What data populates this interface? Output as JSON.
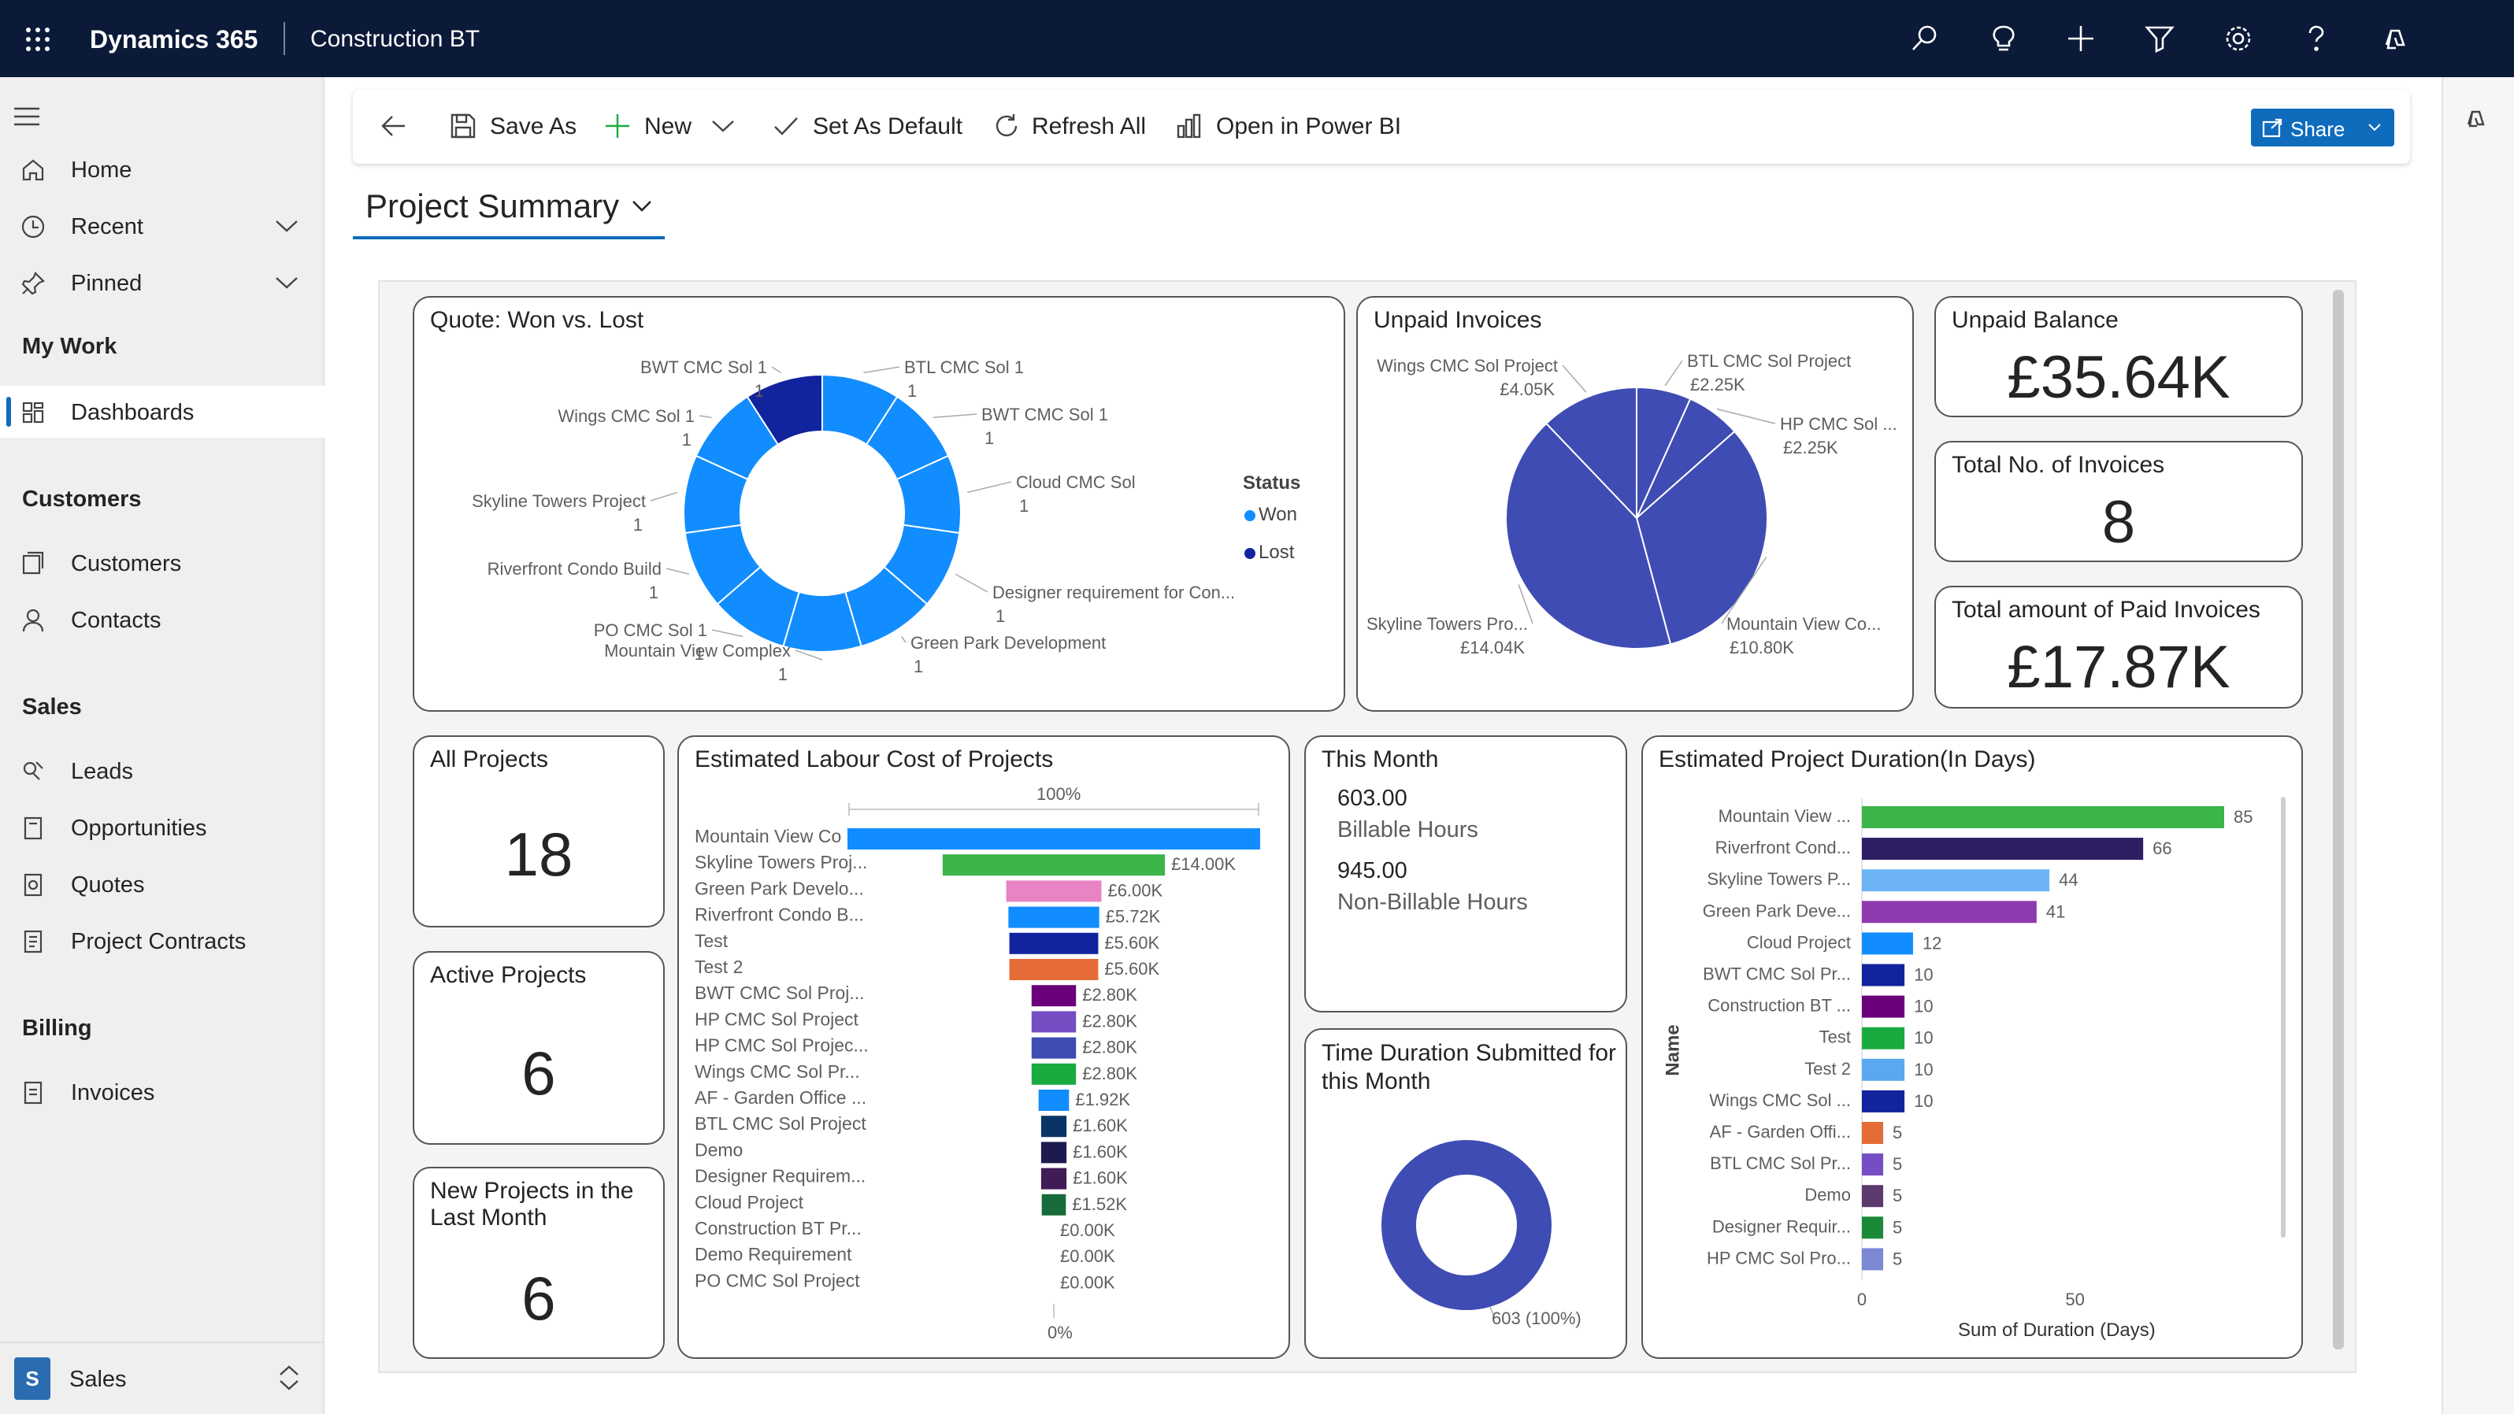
{
  "header": {
    "app_name": "Dynamics 365",
    "environment": "Construction BT",
    "icons": [
      "search-icon",
      "lightbulb-icon",
      "plus-icon",
      "filter-icon",
      "settings-icon",
      "help-icon",
      "copilot-icon"
    ]
  },
  "sidebar": {
    "top": [
      {
        "label": "Home",
        "icon": "home-icon"
      },
      {
        "label": "Recent",
        "icon": "clock-icon"
      },
      {
        "label": "Pinned",
        "icon": "pin-icon"
      }
    ],
    "my_work": {
      "title": "My Work",
      "items": [
        {
          "label": "Dashboards",
          "icon": "dashboard-icon"
        }
      ]
    },
    "customers": {
      "title": "Customers",
      "items": [
        {
          "label": "Customers",
          "icon": "customers-icon"
        },
        {
          "label": "Contacts",
          "icon": "person-icon"
        }
      ]
    },
    "sales": {
      "title": "Sales",
      "items": [
        {
          "label": "Leads",
          "icon": "leads-icon"
        },
        {
          "label": "Opportunities",
          "icon": "opportunity-icon"
        },
        {
          "label": "Quotes",
          "icon": "quote-icon"
        },
        {
          "label": "Project Contracts",
          "icon": "contract-icon"
        }
      ]
    },
    "billing": {
      "title": "Billing",
      "items": [
        {
          "label": "Invoices",
          "icon": "invoice-icon"
        }
      ]
    },
    "area": {
      "badge": "S",
      "label": "Sales"
    }
  },
  "commandbar": {
    "save_as": "Save As",
    "new": "New",
    "set_default": "Set As Default",
    "refresh": "Refresh All",
    "power_bi": "Open in Power BI",
    "share": "Share"
  },
  "dashboard": {
    "title": "Project Summary"
  },
  "colors": {
    "won": "#118dff",
    "lost": "#12239e",
    "navy": "#0b1a38",
    "accent": "#0f6cbd",
    "pie": "#3f4cb3"
  },
  "tiles": {
    "quote": {
      "title": "Quote: Won vs. Lost",
      "legend_title": "Status",
      "legend_won": "Won",
      "legend_lost": "Lost"
    },
    "unpaid_invoices": {
      "title": "Unpaid Invoices"
    },
    "unpaid_balance": {
      "title": "Unpaid Balance",
      "value": "£35.64K"
    },
    "total_invoices": {
      "title": "Total No. of Invoices",
      "value": "8"
    },
    "paid_invoices": {
      "title": "Total amount of Paid Invoices",
      "value": "£17.87K"
    },
    "all_projects": {
      "title": "All Projects",
      "value": "18"
    },
    "active_projects": {
      "title": "Active Projects",
      "value": "6"
    },
    "new_projects": {
      "title": "New Projects in the Last Month",
      "value": "6"
    },
    "labour": {
      "title": "Estimated Labour Cost of Projects",
      "top_axis": "100%",
      "bottom_axis": "0%"
    },
    "this_month": {
      "title": "This Month",
      "billable_value": "603.00",
      "billable_label": "Billable Hours",
      "nonbillable_value": "945.00",
      "nonbillable_label": "Non-Billable Hours"
    },
    "time_duration": {
      "title": "Time Duration Submitted for this Month",
      "label": "603 (100%)"
    },
    "duration": {
      "title": "Estimated Project Duration(In Days)",
      "ylabel": "Name",
      "xlabel": "Sum of Duration (Days)"
    }
  },
  "chart_data": [
    {
      "type": "pie",
      "variant": "donut",
      "title": "Quote: Won vs. Lost",
      "legend": [
        "Won",
        "Lost"
      ],
      "slices": [
        {
          "label": "BTL CMC Sol 1",
          "value": 1,
          "status": "Won"
        },
        {
          "label": "BWT CMC Sol 1",
          "value": 1,
          "status": "Won"
        },
        {
          "label": "Cloud CMC Sol",
          "value": 1,
          "status": "Won"
        },
        {
          "label": "Designer requirement for Con...",
          "value": 1,
          "status": "Won"
        },
        {
          "label": "Green Park Development",
          "value": 1,
          "status": "Won"
        },
        {
          "label": "Mountain View Complex",
          "value": 1,
          "status": "Won"
        },
        {
          "label": "PO CMC Sol 1",
          "value": 1,
          "status": "Won"
        },
        {
          "label": "Riverfront Condo Build",
          "value": 1,
          "status": "Won"
        },
        {
          "label": "Skyline Towers Project",
          "value": 1,
          "status": "Won"
        },
        {
          "label": "Wings CMC Sol 1",
          "value": 1,
          "status": "Won"
        },
        {
          "label": "BWT CMC Sol 1",
          "value": 1,
          "status": "Lost"
        }
      ]
    },
    {
      "type": "pie",
      "title": "Unpaid Invoices",
      "slices": [
        {
          "label": "BTL CMC Sol Project",
          "value": 2.25,
          "display": "£2.25K"
        },
        {
          "label": "HP CMC Sol ...",
          "value": 2.25,
          "display": "£2.25K"
        },
        {
          "label": "Mountain View Co...",
          "value": 10.8,
          "display": "£10.80K"
        },
        {
          "label": "Skyline Towers Pro...",
          "value": 14.04,
          "display": "£14.04K"
        },
        {
          "label": "Wings CMC Sol Project",
          "value": 4.05,
          "display": "£4.05K"
        }
      ]
    },
    {
      "type": "bar",
      "variant": "funnel",
      "title": "Estimated Labour Cost of Projects",
      "categories": [
        "Mountain View Co",
        "Skyline Towers Proj...",
        "Green Park Develo...",
        "Riverfront Condo B...",
        "Test",
        "Test 2",
        "BWT CMC Sol Proj...",
        "HP CMC Sol Project",
        "HP CMC Sol Projec...",
        "Wings CMC Sol Pr...",
        "AF - Garden Office ...",
        "BTL CMC Sol Project",
        "Demo",
        "Designer Requirem...",
        "Cloud Project",
        "Construction BT Pr...",
        "Demo Requirement",
        "PO CMC Sol Project"
      ],
      "values": [
        26,
        14.0,
        6.0,
        5.72,
        5.6,
        5.6,
        2.8,
        2.8,
        2.8,
        2.8,
        1.92,
        1.6,
        1.6,
        1.6,
        1.52,
        0,
        0,
        0
      ],
      "labels": [
        "",
        "£14.00K",
        "£6.00K",
        "£5.72K",
        "£5.60K",
        "£5.60K",
        "£2.80K",
        "£2.80K",
        "£2.80K",
        "£2.80K",
        "£1.92K",
        "£1.60K",
        "£1.60K",
        "£1.60K",
        "£1.52K",
        "£0.00K",
        "£0.00K",
        "£0.00K"
      ],
      "colors": [
        "#118dff",
        "#3bb44a",
        "#e884c4",
        "#118dff",
        "#12239e",
        "#e66c37",
        "#6b007b",
        "#744ec2",
        "#3f4cb3",
        "#1aab40",
        "#118dff",
        "#0b3466",
        "#1c1a4e",
        "#401b57",
        "#176b3a",
        "#118dff",
        "#118dff",
        "#118dff"
      ]
    },
    {
      "type": "pie",
      "variant": "donut",
      "title": "Time Duration Submitted for this Month",
      "slices": [
        {
          "label": "603 (100%)",
          "value": 603
        }
      ]
    },
    {
      "type": "bar",
      "orientation": "horizontal",
      "title": "Estimated Project Duration(In Days)",
      "xlabel": "Sum of Duration (Days)",
      "ylabel": "Name",
      "xticks": [
        0,
        50
      ],
      "categories": [
        "Mountain View ...",
        "Riverfront Cond...",
        "Skyline Towers P...",
        "Green Park Deve...",
        "Cloud Project",
        "BWT CMC Sol Pr...",
        "Construction BT ...",
        "Test",
        "Test 2",
        "Wings CMC Sol ...",
        "AF - Garden Offi...",
        "BTL CMC Sol Pr...",
        "Demo",
        "Designer Requir...",
        "HP CMC Sol Pro..."
      ],
      "values": [
        85,
        66,
        44,
        41,
        12,
        10,
        10,
        10,
        10,
        10,
        5,
        5,
        5,
        5,
        5
      ],
      "colors": [
        "#3bb44a",
        "#2d1d63",
        "#6cb4f5",
        "#8e3ab0",
        "#118dff",
        "#12239e",
        "#6b007b",
        "#1aab40",
        "#5aa8f0",
        "#12239e",
        "#e66c37",
        "#744ec2",
        "#5c3a6e",
        "#1a8a38",
        "#7c88d4"
      ]
    }
  ]
}
